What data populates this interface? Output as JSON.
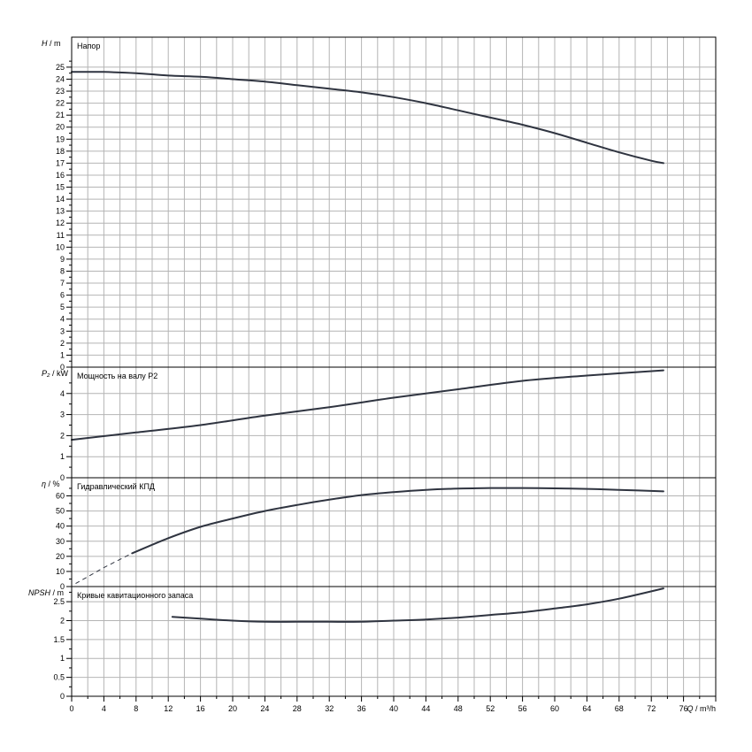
{
  "chart_data": {
    "type": "line",
    "x": {
      "label": "Q / m³/h",
      "range": [
        0,
        80
      ],
      "ticks": [
        0,
        4,
        8,
        12,
        16,
        20,
        24,
        28,
        32,
        36,
        40,
        44,
        48,
        52,
        56,
        60,
        64,
        68,
        72,
        76
      ]
    },
    "grid": true,
    "panels": [
      {
        "id": "head",
        "title": "Напор",
        "ylabel_symbol": "H",
        "ylabel_unit": "/ m",
        "ylim": [
          0,
          27.5
        ],
        "yticks": [
          0,
          1,
          2,
          3,
          4,
          5,
          6,
          7,
          8,
          9,
          10,
          11,
          12,
          13,
          14,
          15,
          16,
          17,
          18,
          19,
          20,
          21,
          22,
          23,
          24,
          25
        ],
        "series": [
          {
            "style": "solid",
            "points": [
              [
                0,
                24.6
              ],
              [
                4,
                24.6
              ],
              [
                8,
                24.5
              ],
              [
                12,
                24.3
              ],
              [
                16,
                24.2
              ],
              [
                20,
                24.0
              ],
              [
                24,
                23.8
              ],
              [
                28,
                23.5
              ],
              [
                32,
                23.2
              ],
              [
                36,
                22.9
              ],
              [
                40,
                22.5
              ],
              [
                44,
                22.0
              ],
              [
                48,
                21.4
              ],
              [
                52,
                20.8
              ],
              [
                56,
                20.2
              ],
              [
                60,
                19.5
              ],
              [
                64,
                18.7
              ],
              [
                68,
                17.9
              ],
              [
                72,
                17.2
              ],
              [
                73.5,
                17.0
              ]
            ]
          }
        ]
      },
      {
        "id": "power",
        "title": "Мощность на валу P2",
        "ylabel_symbol": "P₂",
        "ylabel_unit": "/ kW",
        "ylim": [
          0,
          5.25
        ],
        "yticks": [
          0,
          1,
          2,
          3,
          4
        ],
        "series": [
          {
            "style": "solid",
            "points": [
              [
                0,
                1.8
              ],
              [
                8,
                2.15
              ],
              [
                16,
                2.5
              ],
              [
                24,
                2.95
              ],
              [
                32,
                3.35
              ],
              [
                40,
                3.8
              ],
              [
                48,
                4.2
              ],
              [
                56,
                4.6
              ],
              [
                64,
                4.85
              ],
              [
                73.5,
                5.1
              ]
            ]
          }
        ]
      },
      {
        "id": "efficiency",
        "title": "Гидравлический КПД",
        "ylabel_symbol": "η",
        "ylabel_unit": "/ %",
        "ylim": [
          0,
          72
        ],
        "yticks": [
          0,
          10,
          20,
          30,
          40,
          50,
          60
        ],
        "series": [
          {
            "style": "dashed",
            "points": [
              [
                0.5,
                2
              ],
              [
                2,
                6.5
              ],
              [
                4,
                12.5
              ],
              [
                6,
                18
              ],
              [
                7.5,
                22
              ]
            ]
          },
          {
            "style": "solid",
            "points": [
              [
                7.5,
                22
              ],
              [
                12,
                32
              ],
              [
                16,
                39.5
              ],
              [
                20,
                45
              ],
              [
                24,
                50
              ],
              [
                28,
                54
              ],
              [
                32,
                57.5
              ],
              [
                36,
                60.5
              ],
              [
                40,
                62.5
              ],
              [
                44,
                64
              ],
              [
                48,
                64.8
              ],
              [
                52,
                65.2
              ],
              [
                56,
                65.2
              ],
              [
                60,
                65
              ],
              [
                64,
                64.6
              ],
              [
                68,
                64
              ],
              [
                73.5,
                63
              ]
            ]
          }
        ]
      },
      {
        "id": "npsh",
        "title": "Кривые кавитационного запаса",
        "ylabel_symbol": "NPSH",
        "ylabel_unit": "/ m",
        "ylim": [
          0,
          2.9
        ],
        "yticks": [
          0,
          0.5,
          1,
          1.5,
          2,
          2.5
        ],
        "series": [
          {
            "style": "solid",
            "points": [
              [
                12.5,
                2.1
              ],
              [
                16,
                2.05
              ],
              [
                20,
                2.0
              ],
              [
                24,
                1.97
              ],
              [
                28,
                1.97
              ],
              [
                32,
                1.97
              ],
              [
                36,
                1.97
              ],
              [
                40,
                2.0
              ],
              [
                44,
                2.03
              ],
              [
                48,
                2.08
              ],
              [
                52,
                2.15
              ],
              [
                56,
                2.22
              ],
              [
                60,
                2.32
              ],
              [
                64,
                2.43
              ],
              [
                68,
                2.58
              ],
              [
                73.5,
                2.85
              ]
            ]
          }
        ]
      }
    ]
  }
}
